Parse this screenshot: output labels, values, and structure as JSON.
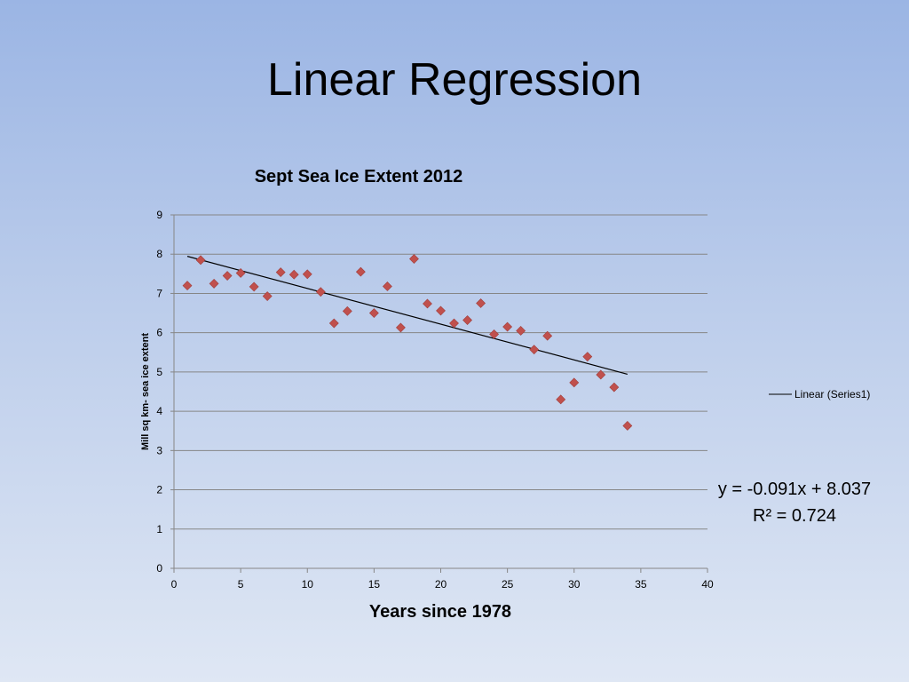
{
  "slide": {
    "title": "Linear Regression"
  },
  "chart_data": {
    "type": "scatter",
    "title": "Sept Sea Ice Extent 2012",
    "xlabel": "Years since 1978",
    "ylabel": "Mill sq km- sea ice extent",
    "xlim": [
      0,
      40
    ],
    "ylim": [
      0,
      9
    ],
    "xticks": [
      0,
      5,
      10,
      15,
      20,
      25,
      30,
      35,
      40
    ],
    "yticks": [
      0,
      1,
      2,
      3,
      4,
      5,
      6,
      7,
      8,
      9
    ],
    "grid": true,
    "marker_color": "#c0504d",
    "series": [
      {
        "x": [
          1,
          2,
          3,
          4,
          5,
          6,
          7,
          8,
          9,
          10,
          11,
          12,
          13,
          14,
          15,
          16,
          17,
          18,
          19,
          20,
          21,
          22,
          23,
          24,
          25,
          26,
          27,
          28,
          29,
          30,
          31,
          32,
          33,
          34
        ],
        "y": [
          7.2,
          7.85,
          7.25,
          7.45,
          7.52,
          7.17,
          6.93,
          7.54,
          7.48,
          7.49,
          7.04,
          6.24,
          6.55,
          7.55,
          6.5,
          7.18,
          6.13,
          7.88,
          6.74,
          6.56,
          6.24,
          6.32,
          6.75,
          5.96,
          6.15,
          6.05,
          5.57,
          5.92,
          4.3,
          4.73,
          5.39,
          4.93,
          4.61,
          3.63
        ]
      }
    ],
    "trendline": {
      "legend": "Linear (Series1)",
      "slope": -0.091,
      "intercept": 8.037,
      "x_start": 1,
      "x_end": 34,
      "equation": "y = -0.091x + 8.037",
      "r_squared": "R² = 0.724"
    },
    "legend_position": "right"
  }
}
